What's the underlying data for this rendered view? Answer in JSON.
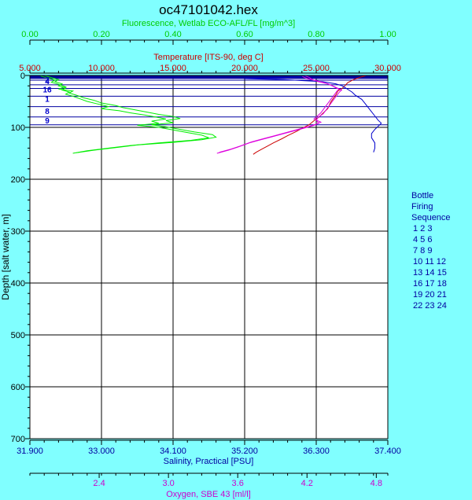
{
  "chart_data": {
    "type": "line",
    "title": "oc47101042.hex",
    "axes": {
      "fluorescence": {
        "label": "Fluorescence, Wetlab ECO-AFL/FL [mg/m^3]",
        "range": [
          0,
          1
        ],
        "ticks": [
          "0.00",
          "0.20",
          "0.40",
          "0.60",
          "0.80",
          "1.00"
        ],
        "color": "#00cc00"
      },
      "temperature": {
        "label": "Temperature [ITS-90, deg C]",
        "range": [
          5,
          30
        ],
        "ticks": [
          "5.000",
          "10.000",
          "15.000",
          "20.000",
          "25.000",
          "30.000"
        ],
        "color": "#cc0000"
      },
      "depth": {
        "label": "Depth [salt water, m]",
        "range": [
          0,
          700
        ],
        "ticks": [
          "0",
          "100",
          "200",
          "300",
          "400",
          "500",
          "600",
          "700"
        ],
        "color": "#000000"
      },
      "salinity": {
        "label": "Salinity, Practical [PSU]",
        "range": [
          31.9,
          37.4
        ],
        "ticks": [
          "31.900",
          "33.000",
          "34.100",
          "35.200",
          "36.300",
          "37.400"
        ],
        "color": "#0000a0"
      },
      "oxygen": {
        "label": "Oxygen, SBE 43 [ml/l]",
        "range": [
          1.8,
          4.9
        ],
        "tick_values": [
          2.4,
          3.0,
          3.6,
          4.2,
          4.8
        ],
        "ticks": [
          "2.4",
          "3.0",
          "3.6",
          "4.2",
          "4.8"
        ],
        "color": "#cc00cc"
      }
    },
    "series": [
      {
        "axis": "fluorescence",
        "color": "#00ee00",
        "profiles": [
          [
            [
              0.04,
              0
            ],
            [
              0.06,
              4
            ],
            [
              0.08,
              8
            ],
            [
              0.07,
              12
            ],
            [
              0.09,
              16
            ],
            [
              0.08,
              20
            ],
            [
              0.1,
              24
            ],
            [
              0.09,
              28
            ],
            [
              0.11,
              32
            ],
            [
              0.1,
              36
            ],
            [
              0.12,
              40
            ],
            [
              0.14,
              45
            ],
            [
              0.16,
              50
            ],
            [
              0.19,
              55
            ],
            [
              0.22,
              60
            ],
            [
              0.2,
              64
            ],
            [
              0.25,
              68
            ],
            [
              0.28,
              72
            ],
            [
              0.32,
              76
            ],
            [
              0.35,
              80
            ],
            [
              0.38,
              84
            ],
            [
              0.34,
              88
            ],
            [
              0.36,
              92
            ],
            [
              0.3,
              96
            ],
            [
              0.36,
              100
            ],
            [
              0.4,
              105
            ],
            [
              0.44,
              110
            ],
            [
              0.48,
              115
            ],
            [
              0.5,
              120
            ],
            [
              0.45,
              125
            ],
            [
              0.36,
              130
            ],
            [
              0.28,
              135
            ],
            [
              0.22,
              140
            ],
            [
              0.16,
              145
            ],
            [
              0.12,
              150
            ]
          ],
          [
            [
              0.03,
              1
            ],
            [
              0.05,
              5
            ],
            [
              0.07,
              9
            ],
            [
              0.06,
              13
            ],
            [
              0.08,
              17
            ],
            [
              0.1,
              22
            ],
            [
              0.08,
              26
            ],
            [
              0.12,
              30
            ],
            [
              0.11,
              34
            ],
            [
              0.13,
              38
            ],
            [
              0.15,
              43
            ],
            [
              0.18,
              48
            ],
            [
              0.2,
              53
            ],
            [
              0.24,
              58
            ],
            [
              0.26,
              62
            ],
            [
              0.3,
              67
            ],
            [
              0.33,
              71
            ],
            [
              0.36,
              75
            ],
            [
              0.4,
              79
            ],
            [
              0.42,
              83
            ],
            [
              0.38,
              87
            ],
            [
              0.4,
              91
            ],
            [
              0.34,
              95
            ],
            [
              0.38,
              99
            ],
            [
              0.42,
              104
            ],
            [
              0.46,
              109
            ],
            [
              0.51,
              114
            ],
            [
              0.52,
              119
            ],
            [
              0.48,
              124
            ],
            [
              0.4,
              129
            ],
            [
              0.3,
              134
            ],
            [
              0.24,
              139
            ],
            [
              0.18,
              144
            ],
            [
              0.13,
              149
            ]
          ]
        ]
      },
      {
        "axis": "temperature",
        "color": "#cc0000",
        "profiles": [
          [
            [
              28.5,
              0
            ],
            [
              28.0,
              4
            ],
            [
              27.6,
              8
            ],
            [
              27.2,
              14
            ],
            [
              27.0,
              20
            ],
            [
              26.8,
              25
            ],
            [
              26.5,
              30
            ],
            [
              26.4,
              36
            ],
            [
              26.2,
              44
            ],
            [
              26.0,
              52
            ],
            [
              25.9,
              58
            ],
            [
              25.8,
              64
            ],
            [
              25.5,
              72
            ],
            [
              25.2,
              80
            ],
            [
              24.8,
              88
            ],
            [
              24.5,
              95
            ],
            [
              24.0,
              102
            ],
            [
              23.6,
              108
            ],
            [
              23.0,
              116
            ],
            [
              22.6,
              122
            ],
            [
              22.0,
              130
            ],
            [
              21.6,
              136
            ],
            [
              21.2,
              142
            ],
            [
              20.8,
              148
            ],
            [
              20.6,
              152
            ]
          ]
        ]
      },
      {
        "axis": "salinity",
        "color": "#0000cc",
        "profiles": [
          [
            [
              36.2,
              0
            ],
            [
              36.15,
              2
            ],
            [
              35.8,
              4
            ],
            [
              35.2,
              6
            ],
            [
              35.8,
              8
            ],
            [
              36.4,
              12
            ],
            [
              36.6,
              16
            ],
            [
              36.7,
              20
            ],
            [
              36.75,
              24
            ],
            [
              36.8,
              28
            ],
            [
              36.85,
              32
            ],
            [
              36.9,
              38
            ],
            [
              37.0,
              46
            ],
            [
              37.05,
              54
            ],
            [
              37.1,
              62
            ],
            [
              37.15,
              70
            ],
            [
              37.2,
              78
            ],
            [
              37.25,
              86
            ],
            [
              37.3,
              92
            ],
            [
              37.25,
              98
            ],
            [
              37.2,
              104
            ],
            [
              37.15,
              112
            ],
            [
              37.15,
              120
            ],
            [
              37.2,
              130
            ],
            [
              37.2,
              140
            ],
            [
              37.18,
              148
            ]
          ]
        ]
      },
      {
        "axis": "oxygen",
        "color": "#dd00dd",
        "profiles": [
          [
            [
              4.18,
              0
            ],
            [
              4.22,
              4
            ],
            [
              4.25,
              8
            ],
            [
              4.3,
              12
            ],
            [
              4.38,
              16
            ],
            [
              4.42,
              20
            ],
            [
              4.45,
              24
            ],
            [
              4.5,
              28
            ],
            [
              4.48,
              32
            ],
            [
              4.46,
              38
            ],
            [
              4.44,
              44
            ],
            [
              4.42,
              50
            ],
            [
              4.4,
              56
            ],
            [
              4.38,
              62
            ],
            [
              4.36,
              68
            ],
            [
              4.34,
              74
            ],
            [
              4.3,
              80
            ],
            [
              4.28,
              86
            ],
            [
              4.3,
              92
            ],
            [
              4.26,
              96
            ],
            [
              4.2,
              100
            ],
            [
              4.1,
              106
            ],
            [
              4.0,
              112
            ],
            [
              3.9,
              118
            ],
            [
              3.8,
              124
            ],
            [
              3.7,
              130
            ],
            [
              3.6,
              138
            ],
            [
              3.52,
              144
            ],
            [
              3.42,
              150
            ]
          ],
          [
            [
              4.16,
              2
            ],
            [
              4.2,
              6
            ],
            [
              4.28,
              10
            ],
            [
              4.35,
              14
            ],
            [
              4.4,
              18
            ],
            [
              4.44,
              22
            ],
            [
              4.48,
              26
            ],
            [
              4.46,
              30
            ],
            [
              4.44,
              36
            ],
            [
              4.42,
              42
            ],
            [
              4.4,
              48
            ],
            [
              4.38,
              54
            ],
            [
              4.36,
              60
            ],
            [
              4.34,
              66
            ],
            [
              4.32,
              72
            ],
            [
              4.29,
              78
            ],
            [
              4.26,
              84
            ],
            [
              4.32,
              90
            ],
            [
              4.28,
              94
            ],
            [
              4.22,
              98
            ],
            [
              4.12,
              104
            ],
            [
              4.02,
              110
            ],
            [
              3.92,
              116
            ],
            [
              3.82,
              122
            ],
            [
              3.72,
              128
            ],
            [
              3.62,
              136
            ],
            [
              3.54,
              142
            ],
            [
              3.44,
              148
            ]
          ]
        ]
      }
    ],
    "bottle_lines": {
      "color": "#0000a0",
      "depths": [
        1,
        3,
        5,
        9,
        18,
        25,
        40,
        60,
        80,
        95
      ]
    },
    "bottle_markers": [
      {
        "label": "2",
        "depth": 9
      },
      {
        "label": "4",
        "depth": 12
      },
      {
        "label": "16",
        "depth": 28
      },
      {
        "label": "1",
        "depth": 46
      },
      {
        "label": "8",
        "depth": 70
      },
      {
        "label": "9",
        "depth": 88
      }
    ],
    "legend": {
      "title_lines": [
        "Bottle",
        "Firing",
        "Sequence"
      ],
      "rows": [
        "1  2  3",
        "4  5  6",
        "7  8  9",
        "10 11 12",
        "13 14 15",
        "16 17 18",
        "19 20 21",
        "22 23 24"
      ],
      "placement": "right",
      "color": "#0000a0"
    }
  }
}
